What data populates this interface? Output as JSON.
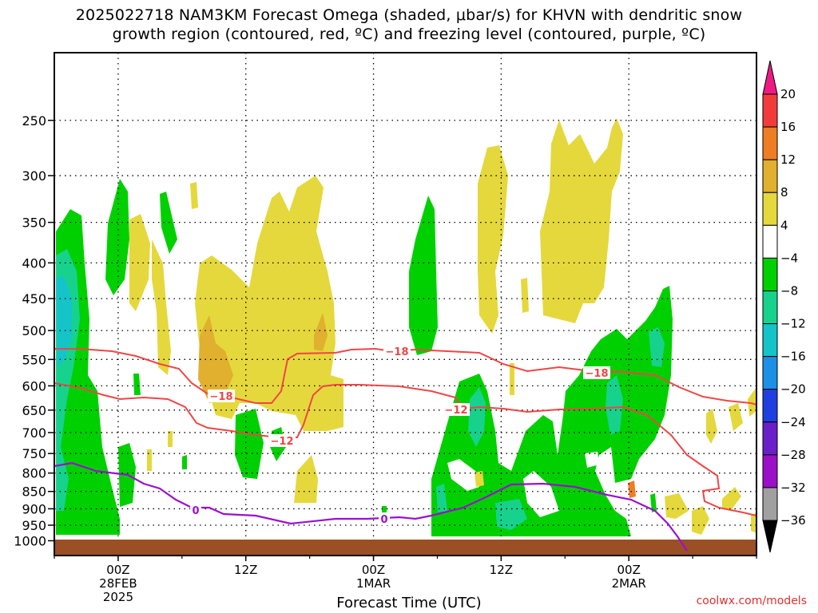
{
  "title_line1": "2025022718 NAM3KM Forecast Omega (shaded, μbar/s) for KHVN with dendritic snow",
  "title_line2": "growth region (contoured, red, ºC) and freezing level (contoured, purple, ºC)",
  "credit": "coolwx.com/models",
  "chart_data": {
    "type": "heatmap",
    "title": "2025022718 NAM3KM Forecast Omega (shaded, μbar/s) for KHVN with dendritic snow growth region (contoured, red, ºC) and freezing level (contoured, purple, ºC)",
    "xlabel": "Forecast Time (UTC)",
    "ylabel": "",
    "y_scale": "log-pressure (hPa), inverted",
    "x_range_hours_utc": [
      "2025-02-27 18Z",
      "2025-03-02 12Z"
    ],
    "y_range_hpa": [
      1050,
      200
    ],
    "y_ticks": [
      250,
      300,
      350,
      400,
      450,
      500,
      550,
      600,
      650,
      700,
      750,
      800,
      850,
      900,
      950,
      1000
    ],
    "x_ticks": [
      {
        "time": "2025-02-28 00Z",
        "label": [
          "00Z",
          "28FEB",
          "2025"
        ]
      },
      {
        "time": "2025-02-28 12Z",
        "label": [
          "12Z"
        ]
      },
      {
        "time": "2025-03-01 00Z",
        "label": [
          "00Z",
          "1MAR"
        ]
      },
      {
        "time": "2025-03-01 12Z",
        "label": [
          "12Z"
        ]
      },
      {
        "time": "2025-03-02 00Z",
        "label": [
          "00Z",
          "2MAR"
        ]
      }
    ],
    "grid": true,
    "colorbar": {
      "labels": [
        "20",
        "16",
        "12",
        "8",
        "4",
        "−4",
        "−8",
        "−12",
        "−16",
        "−20",
        "−24",
        "−28",
        "−32",
        "−36"
      ],
      "colors": [
        "#ee1a84",
        "#f23c3c",
        "#ef7d24",
        "#e0b02e",
        "#e5d83c",
        "#ffffff",
        "#00d000",
        "#17d28d",
        "#14c4c8",
        "#1c8fe6",
        "#1f3fe0",
        "#6a1fc8",
        "#9b0fc8",
        "#a0a0a0",
        "#000000"
      ]
    },
    "contours_red_dgz": [
      {
        "label": "−18",
        "shown_at": [
          "2025-02-28 07Z",
          "2025-03-01 00Z",
          "2025-03-01 16Z"
        ]
      },
      {
        "label": "−12",
        "shown_at": [
          "2025-02-28 13Z",
          "2025-03-01 04Z"
        ]
      }
    ],
    "contour_purple_freezing": {
      "label": "0",
      "shown_at": [
        "2025-02-28 07Z",
        "2025-02-28 22Z"
      ]
    },
    "ground": "brown shaded below ~1000 hPa"
  }
}
